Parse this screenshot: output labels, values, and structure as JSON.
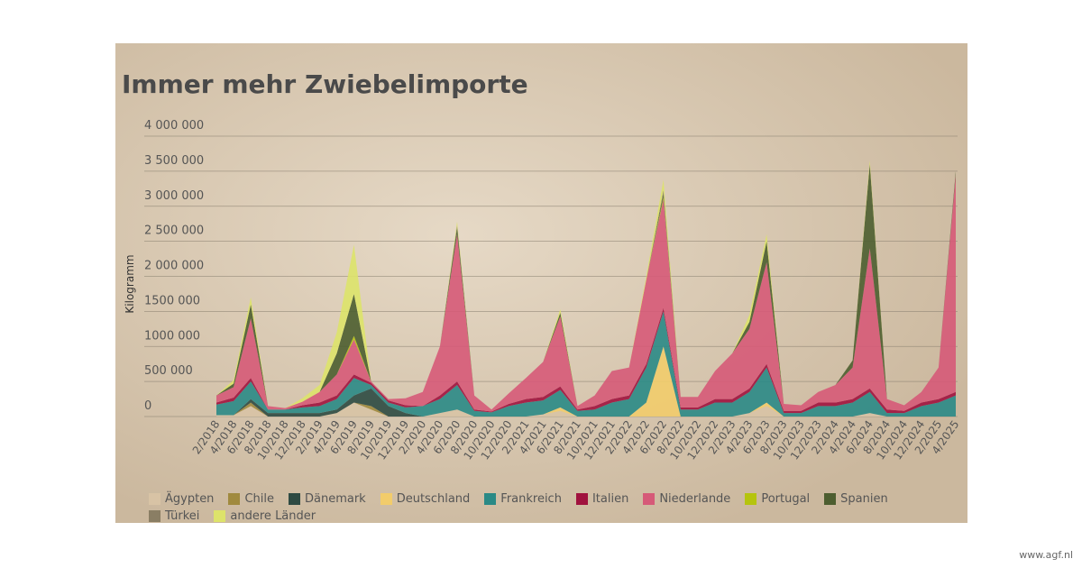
{
  "chart_data": {
    "type": "stacked-area",
    "title": "Immer mehr Zwiebelimporte",
    "y_label": "Kilogramm",
    "watermark": "www.agf.nl",
    "categories": [
      "2/2018",
      "4/2018",
      "6/2018",
      "8/2018",
      "10/2018",
      "12/2018",
      "2/2019",
      "4/2019",
      "6/2019",
      "8/2019",
      "10/2019",
      "12/2019",
      "2/2020",
      "4/2020",
      "6/2020",
      "8/2020",
      "10/2020",
      "12/2020",
      "2/2021",
      "4/2021",
      "6/2021",
      "8/2021",
      "10/2021",
      "12/2021",
      "2/2022",
      "4/2022",
      "6/2022",
      "8/2022",
      "10/2022",
      "12/2022",
      "2/2023",
      "4/2023",
      "6/2023",
      "8/2023",
      "10/2023",
      "12/2023",
      "2/2024",
      "4/2024",
      "6/2024",
      "8/2024",
      "10/2024",
      "12/2024",
      "2/2025",
      "4/2025"
    ],
    "ylim": [
      0,
      4000000
    ],
    "yticks": [
      0,
      {
        "value": 500000,
        "label": "500 000"
      },
      {
        "value": 1000000,
        "label": "1000 000"
      },
      {
        "value": 1500000,
        "label": "1500 000"
      },
      {
        "value": 2000000,
        "label": "2 000 000"
      },
      {
        "value": 2500000,
        "label": "2 500 000"
      },
      {
        "value": 3000000,
        "label": "3 000 000"
      },
      {
        "value": 3500000,
        "label": "3 500 000"
      },
      {
        "value": 4000000,
        "label": "4 000 000"
      }
    ],
    "grid": true,
    "series": [
      {
        "name": "Ägypten",
        "color": "#d8c3a5",
        "values": [
          20000,
          20000,
          150000,
          0,
          0,
          0,
          0,
          50000,
          200000,
          100000,
          0,
          0,
          0,
          50000,
          100000,
          0,
          0,
          0,
          0,
          30000,
          80000,
          0,
          0,
          0,
          0,
          0,
          0,
          0,
          0,
          0,
          0,
          50000,
          150000,
          0,
          0,
          0,
          0,
          0,
          50000,
          0,
          0,
          0,
          0,
          0
        ]
      },
      {
        "name": "Chile",
        "color": "#a08a3e",
        "values": [
          0,
          0,
          50000,
          0,
          0,
          0,
          0,
          0,
          0,
          50000,
          0,
          0,
          0,
          0,
          0,
          0,
          0,
          0,
          0,
          0,
          0,
          0,
          0,
          0,
          0,
          0,
          0,
          0,
          0,
          0,
          0,
          0,
          0,
          0,
          0,
          0,
          0,
          0,
          0,
          0,
          0,
          0,
          0,
          0
        ]
      },
      {
        "name": "Dänemark",
        "color": "#2e4a42",
        "values": [
          0,
          0,
          50000,
          50000,
          50000,
          50000,
          50000,
          50000,
          100000,
          250000,
          150000,
          50000,
          0,
          0,
          0,
          0,
          0,
          0,
          0,
          0,
          0,
          0,
          0,
          0,
          0,
          0,
          0,
          0,
          0,
          0,
          0,
          0,
          0,
          0,
          0,
          0,
          0,
          0,
          0,
          0,
          0,
          0,
          0,
          0
        ]
      },
      {
        "name": "Deutschland",
        "color": "#f2cc6b",
        "values": [
          0,
          0,
          0,
          0,
          0,
          0,
          0,
          0,
          0,
          0,
          0,
          0,
          0,
          0,
          0,
          0,
          0,
          0,
          0,
          0,
          50000,
          0,
          0,
          0,
          0,
          200000,
          1000000,
          0,
          0,
          0,
          0,
          0,
          50000,
          0,
          0,
          0,
          0,
          0,
          0,
          0,
          0,
          0,
          0,
          0
        ]
      },
      {
        "name": "Frankreich",
        "color": "#2a8a86",
        "values": [
          150000,
          200000,
          250000,
          50000,
          50000,
          80000,
          100000,
          150000,
          250000,
          50000,
          50000,
          80000,
          150000,
          200000,
          350000,
          80000,
          60000,
          150000,
          200000,
          200000,
          250000,
          80000,
          100000,
          200000,
          250000,
          500000,
          500000,
          100000,
          100000,
          200000,
          200000,
          300000,
          500000,
          50000,
          50000,
          150000,
          150000,
          200000,
          300000,
          50000,
          50000,
          150000,
          200000,
          300000
        ]
      },
      {
        "name": "Italien",
        "color": "#a0123e",
        "values": [
          30000,
          50000,
          50000,
          0,
          0,
          30000,
          50000,
          50000,
          50000,
          30000,
          30000,
          30000,
          0,
          50000,
          50000,
          20000,
          10000,
          30000,
          50000,
          50000,
          50000,
          20000,
          50000,
          50000,
          50000,
          50000,
          50000,
          30000,
          30000,
          50000,
          50000,
          50000,
          50000,
          30000,
          30000,
          50000,
          50000,
          50000,
          50000,
          50000,
          30000,
          50000,
          50000,
          50000
        ]
      },
      {
        "name": "Niederlande",
        "color": "#d65a78",
        "values": [
          100000,
          150000,
          850000,
          50000,
          20000,
          50000,
          150000,
          300000,
          500000,
          20000,
          20000,
          100000,
          200000,
          700000,
          2100000,
          200000,
          30000,
          150000,
          300000,
          500000,
          1000000,
          50000,
          150000,
          400000,
          400000,
          1200000,
          1550000,
          150000,
          150000,
          400000,
          650000,
          850000,
          1450000,
          100000,
          80000,
          150000,
          250000,
          450000,
          2000000,
          150000,
          80000,
          150000,
          450000,
          3100000
        ]
      },
      {
        "name": "Portugal",
        "color": "#b5c40e",
        "values": [
          0,
          0,
          0,
          0,
          0,
          0,
          0,
          0,
          50000,
          0,
          0,
          0,
          0,
          0,
          0,
          0,
          0,
          0,
          0,
          0,
          0,
          0,
          0,
          0,
          0,
          0,
          30000,
          0,
          0,
          0,
          0,
          0,
          0,
          0,
          0,
          0,
          0,
          0,
          0,
          0,
          0,
          0,
          0,
          0
        ]
      },
      {
        "name": "Spanien",
        "color": "#4d5e30",
        "values": [
          0,
          50000,
          200000,
          0,
          0,
          0,
          0,
          300000,
          600000,
          0,
          0,
          0,
          0,
          0,
          100000,
          0,
          0,
          0,
          0,
          0,
          50000,
          0,
          0,
          0,
          0,
          0,
          50000,
          0,
          0,
          0,
          0,
          100000,
          300000,
          0,
          0,
          0,
          0,
          100000,
          1200000,
          0,
          0,
          0,
          0,
          50000
        ]
      },
      {
        "name": "Türkei",
        "color": "#8a7e64",
        "values": [
          0,
          0,
          0,
          0,
          0,
          0,
          0,
          0,
          0,
          0,
          0,
          0,
          0,
          0,
          30000,
          0,
          0,
          0,
          0,
          0,
          0,
          0,
          0,
          0,
          0,
          0,
          50000,
          0,
          0,
          0,
          0,
          0,
          0,
          0,
          0,
          0,
          0,
          0,
          0,
          0,
          0,
          0,
          0,
          0
        ]
      },
      {
        "name": "andere Länder",
        "color": "#dde36a",
        "values": [
          0,
          50000,
          100000,
          0,
          0,
          50000,
          100000,
          300000,
          700000,
          0,
          0,
          0,
          0,
          0,
          50000,
          0,
          0,
          0,
          0,
          0,
          50000,
          0,
          0,
          0,
          0,
          50000,
          150000,
          0,
          0,
          0,
          0,
          100000,
          100000,
          0,
          0,
          0,
          0,
          0,
          50000,
          0,
          0,
          0,
          0,
          0
        ]
      }
    ]
  }
}
